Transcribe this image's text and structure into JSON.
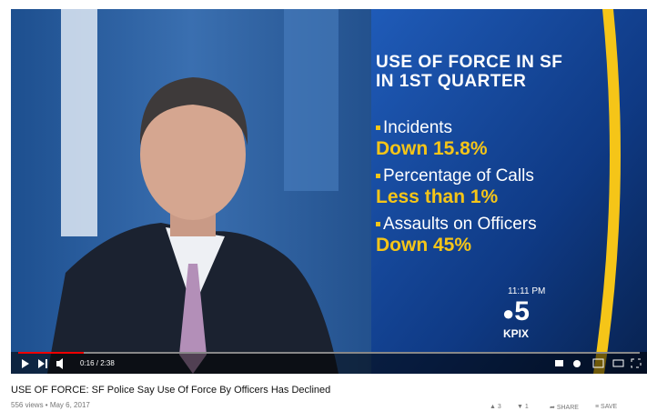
{
  "video": {
    "graphic": {
      "title_lines": [
        "USE OF FORCE IN SF",
        "IN 1ST QUARTER"
      ],
      "items": [
        {
          "label": "Incidents",
          "value": "Down 15.8%"
        },
        {
          "label": "Percentage of Calls",
          "value": "Less than 1%"
        },
        {
          "label": "Assaults on Officers",
          "value": "Down 45%"
        }
      ],
      "time": "11:11 PM",
      "logo_number": "5",
      "logo_station": "KPIX"
    },
    "controls": {
      "time": "0:16 / 2:38"
    }
  },
  "title": "USE OF FORCE: SF Police Say Use Of Force By Officers Has Declined",
  "meta": "556 views • May 6, 2017",
  "actions": {
    "likes": 3,
    "dislikes": 1,
    "share": "SHARE",
    "save": "SAVE"
  }
}
